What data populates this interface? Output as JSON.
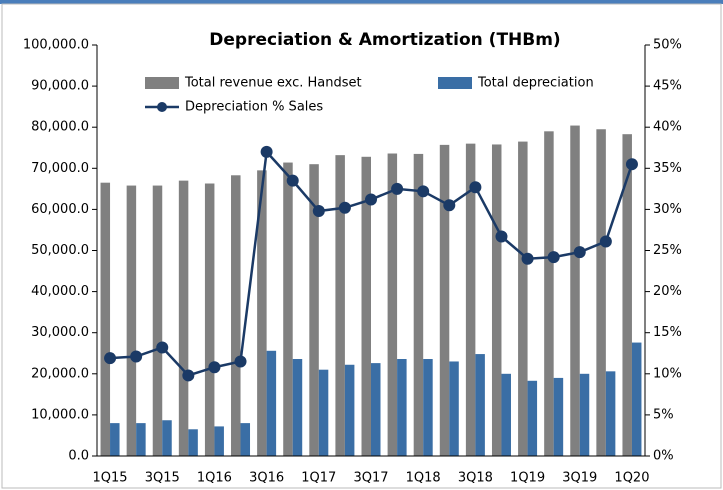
{
  "chart_data": {
    "type": "bar",
    "title": "Depreciation & Amortization (THBm)",
    "categories": [
      "1Q15",
      null,
      "3Q15",
      null,
      "1Q16",
      null,
      "3Q16",
      null,
      "1Q17",
      null,
      "3Q17",
      null,
      "1Q18",
      null,
      "3Q18",
      null,
      "1Q19",
      null,
      "3Q19",
      null,
      "1Q20"
    ],
    "series": [
      {
        "name": "Total revenue exc. Handset",
        "color": "#808080",
        "type": "bar",
        "axis": "y",
        "values": [
          66500,
          65800,
          65800,
          67000,
          66300,
          68300,
          69500,
          71400,
          71000,
          73200,
          72800,
          73600,
          73500,
          75700,
          76000,
          75800,
          76500,
          79000,
          80400,
          79500,
          78300
        ]
      },
      {
        "name": "Total depreciation",
        "color": "#3a6ea5",
        "type": "bar",
        "axis": "y",
        "values": [
          8000,
          8000,
          8700,
          6500,
          7200,
          8000,
          25600,
          23600,
          21000,
          22200,
          22600,
          23600,
          23600,
          23000,
          24800,
          20000,
          18300,
          19000,
          20000,
          20600,
          27600
        ]
      },
      {
        "name": "Depreciation % Sales",
        "color": "#1b3a66",
        "type": "line",
        "axis": "y2",
        "values": [
          11.9,
          12.1,
          13.2,
          9.8,
          10.8,
          11.5,
          37,
          33.5,
          29.8,
          30.2,
          31.2,
          32.5,
          32.2,
          30.5,
          32.7,
          26.7,
          24,
          24.2,
          24.8,
          26.1,
          35.5
        ]
      }
    ],
    "ylim": [
      0,
      100000
    ],
    "yticks": [
      {
        "value": 0,
        "label": "0.0"
      },
      {
        "value": 10000,
        "label": "10,000.0"
      },
      {
        "value": 20000,
        "label": "20,000.0"
      },
      {
        "value": 30000,
        "label": "30,000.0"
      },
      {
        "value": 40000,
        "label": "40,000.0"
      },
      {
        "value": 50000,
        "label": "50,000.0"
      },
      {
        "value": 60000,
        "label": "60,000.0"
      },
      {
        "value": 70000,
        "label": "70,000.0"
      },
      {
        "value": 80000,
        "label": "80,000.0"
      },
      {
        "value": 90000,
        "label": "90,000.0"
      },
      {
        "value": 100000,
        "label": "100,000.0"
      }
    ],
    "y2lim": [
      0,
      50
    ],
    "y2ticks": [
      {
        "value": 0,
        "label": "0%"
      },
      {
        "value": 5,
        "label": "5%"
      },
      {
        "value": 10,
        "label": "10%"
      },
      {
        "value": 15,
        "label": "15%"
      },
      {
        "value": 20,
        "label": "20%"
      },
      {
        "value": 25,
        "label": "25%"
      },
      {
        "value": 30,
        "label": "30%"
      },
      {
        "value": 35,
        "label": "35%"
      },
      {
        "value": 40,
        "label": "40%"
      },
      {
        "value": 45,
        "label": "45%"
      },
      {
        "value": 50,
        "label": "50%"
      }
    ]
  }
}
